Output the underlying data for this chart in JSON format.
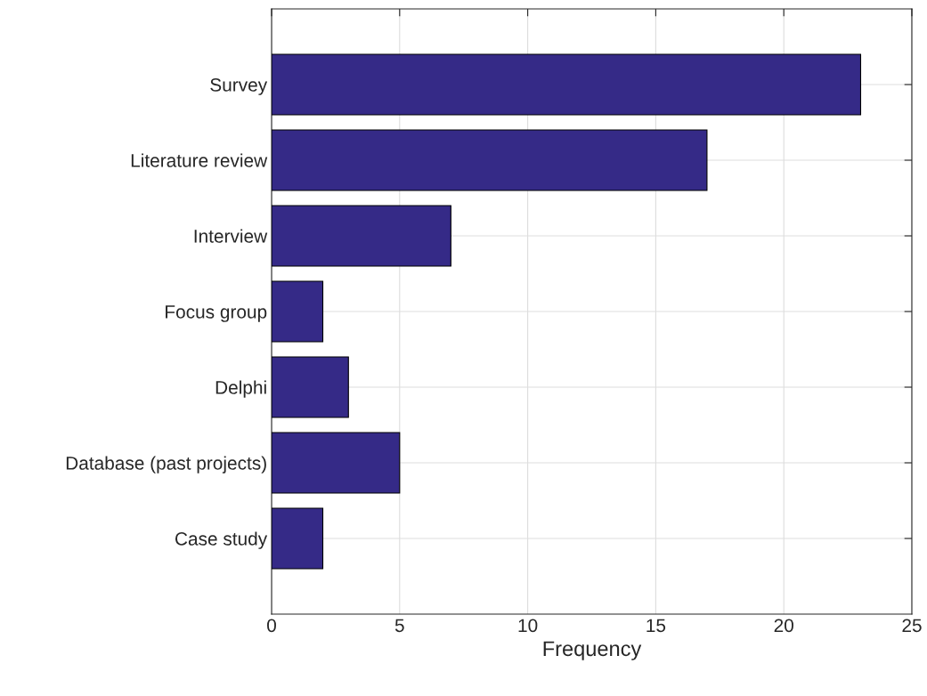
{
  "chart_data": {
    "type": "bar",
    "orientation": "horizontal",
    "xlabel": "Frequency",
    "categories": [
      "Survey",
      "Literature review",
      "Interview",
      "Focus group",
      "Delphi",
      "Database (past projects)",
      "Case study"
    ],
    "values": [
      23,
      17,
      7,
      2,
      3,
      5,
      2
    ],
    "color": "#352a87",
    "xlim": [
      0,
      25
    ],
    "xticks": [
      0,
      5,
      10,
      15,
      20,
      25
    ],
    "grid": true
  }
}
